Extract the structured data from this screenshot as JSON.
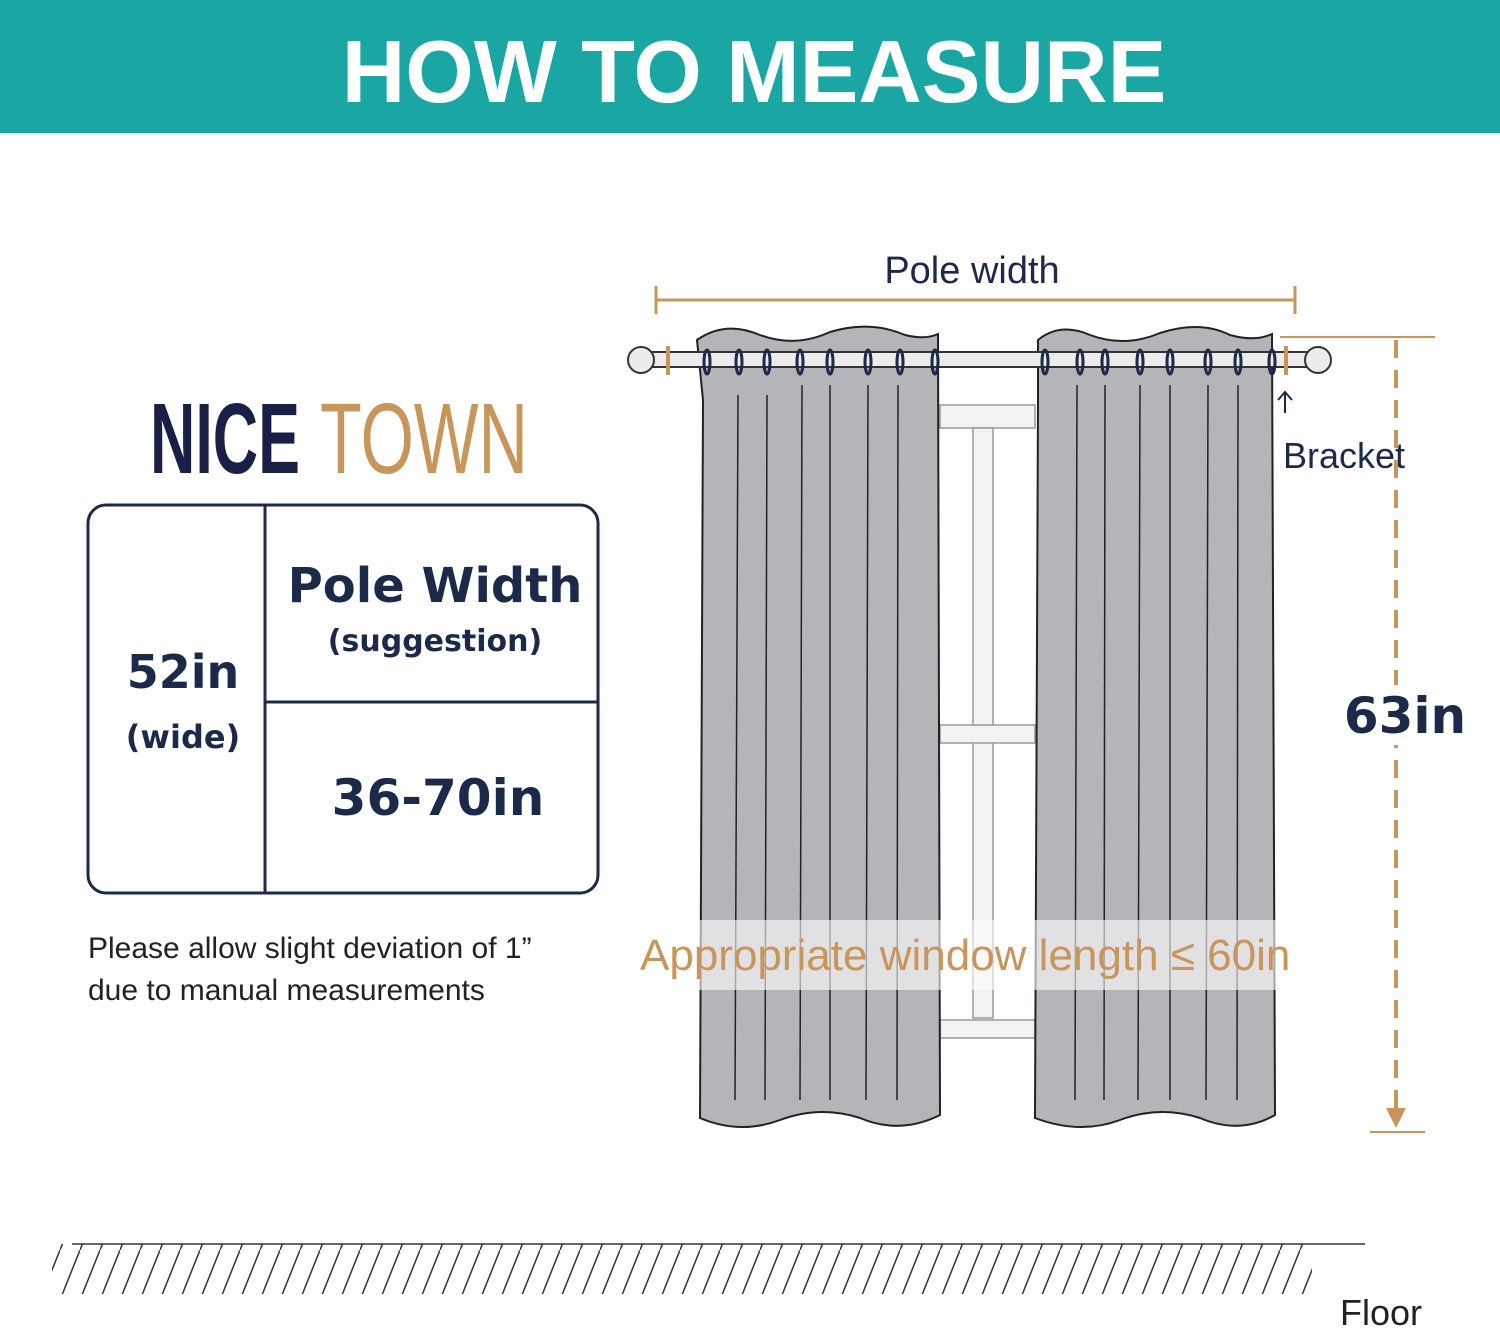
{
  "header": {
    "title": "HOW TO MEASURE",
    "background": "#1aa6a2"
  },
  "brand": {
    "part1": "NICE",
    "part2": "TOWN",
    "color1": "#1a1f45",
    "color2": "#c8955a"
  },
  "size_table": {
    "width_value": "52in",
    "width_note": "(wide)",
    "pole_header": "Pole Width",
    "pole_note": "(suggestion)",
    "pole_range": "36-70in"
  },
  "note": {
    "line1": "Please allow slight deviation of 1”",
    "line2": "due to manual measurements"
  },
  "diagram": {
    "pole_width_label": "Pole width",
    "bracket_label": "Bracket",
    "length_label": "63in",
    "window_length_label": "Appropriate window length ≤ 60in",
    "floor_label": "Floor",
    "accent": "#c8955a",
    "navy": "#1c2a4a",
    "curtain": "#b3b5b8"
  }
}
